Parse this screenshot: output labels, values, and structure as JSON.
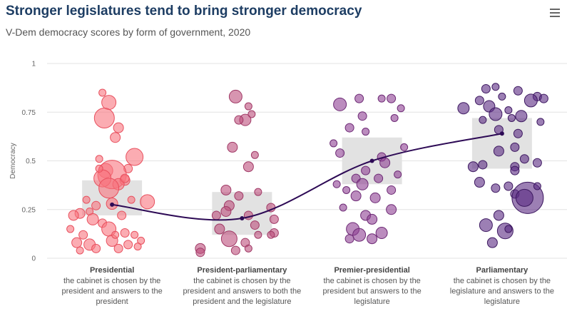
{
  "header": {
    "title": "Stronger legislatures tend to bring stronger democracy",
    "subtitle": "V-Dem democracy scores by form of government, 2020",
    "menu_icon": "hamburger-menu-icon"
  },
  "chart_data": {
    "type": "scatter",
    "title": "Stronger legislatures tend to bring stronger democracy",
    "subtitle": "V-Dem democracy scores by form of government, 2020",
    "ylabel": "Democracy",
    "ylim": [
      0,
      1
    ],
    "yticks": [
      0,
      0.25,
      0.5,
      0.75,
      1
    ],
    "yticklabels": [
      "0",
      "0.25",
      "0.5",
      "0.75",
      "1"
    ],
    "grid": true,
    "categories": [
      {
        "name": "Presidential",
        "description": [
          "the cabinet is chosen by the",
          "president and answers to the",
          "president"
        ],
        "color": "#f8747f",
        "stroke": "#e8505e",
        "iqr": [
          0.22,
          0.4
        ],
        "median": 0.275,
        "points": [
          [
            -0.15,
            0.85,
            5
          ],
          [
            -0.05,
            0.8,
            10
          ],
          [
            -0.12,
            0.72,
            14
          ],
          [
            0.1,
            0.67,
            7
          ],
          [
            0.05,
            0.62,
            7
          ],
          [
            0.35,
            0.52,
            12
          ],
          [
            -0.2,
            0.51,
            5
          ],
          [
            0.25,
            0.46,
            6
          ],
          [
            -0.1,
            0.45,
            10
          ],
          [
            0.0,
            0.43,
            20
          ],
          [
            -0.15,
            0.41,
            12
          ],
          [
            0.2,
            0.4,
            7
          ],
          [
            0.1,
            0.38,
            8
          ],
          [
            -0.05,
            0.36,
            14
          ],
          [
            0.3,
            0.3,
            5
          ],
          [
            -0.4,
            0.3,
            5
          ],
          [
            0.55,
            0.29,
            10
          ],
          [
            0.0,
            0.28,
            8
          ],
          [
            -0.25,
            0.27,
            6
          ],
          [
            -0.5,
            0.23,
            7
          ],
          [
            -0.35,
            0.24,
            5
          ],
          [
            0.15,
            0.22,
            6
          ],
          [
            -0.6,
            0.22,
            7
          ],
          [
            -0.3,
            0.2,
            8
          ],
          [
            -0.15,
            0.18,
            6
          ],
          [
            -0.05,
            0.15,
            10
          ],
          [
            -0.65,
            0.15,
            5
          ],
          [
            0.2,
            0.13,
            6
          ],
          [
            0.35,
            0.12,
            5
          ],
          [
            -0.45,
            0.12,
            6
          ],
          [
            0.0,
            0.09,
            8
          ],
          [
            0.45,
            0.09,
            5
          ],
          [
            -0.55,
            0.08,
            7
          ],
          [
            0.25,
            0.07,
            6
          ],
          [
            -0.35,
            0.07,
            8
          ],
          [
            -0.25,
            0.05,
            6
          ],
          [
            0.4,
            0.06,
            5
          ],
          [
            -0.5,
            0.04,
            5
          ],
          [
            0.1,
            0.05,
            6
          ],
          [
            0.05,
            0.12,
            5
          ],
          [
            0.2,
            0.41,
            6
          ],
          [
            -0.2,
            0.46,
            5
          ]
        ]
      },
      {
        "name": "President-parliamentary",
        "description": [
          "the cabinet is chosen by the",
          "president and answers to both the",
          "president and the legislature"
        ],
        "color": "#bd4e7c",
        "stroke": "#a03a66",
        "iqr": [
          0.12,
          0.34
        ],
        "median": 0.205,
        "points": [
          [
            -0.1,
            0.83,
            9
          ],
          [
            0.1,
            0.78,
            5
          ],
          [
            0.15,
            0.74,
            5
          ],
          [
            0.05,
            0.71,
            8
          ],
          [
            -0.05,
            0.71,
            6
          ],
          [
            -0.15,
            0.57,
            7
          ],
          [
            0.2,
            0.53,
            5
          ],
          [
            0.1,
            0.47,
            7
          ],
          [
            -0.25,
            0.35,
            7
          ],
          [
            0.25,
            0.34,
            5
          ],
          [
            -0.05,
            0.32,
            6
          ],
          [
            -0.2,
            0.27,
            7
          ],
          [
            -0.25,
            0.24,
            7
          ],
          [
            0.45,
            0.26,
            6
          ],
          [
            0.5,
            0.2,
            6
          ],
          [
            -0.4,
            0.22,
            6
          ],
          [
            0.1,
            0.22,
            6
          ],
          [
            -0.35,
            0.15,
            7
          ],
          [
            0.2,
            0.17,
            6
          ],
          [
            0.5,
            0.13,
            6
          ],
          [
            0.45,
            0.12,
            5
          ],
          [
            -0.2,
            0.1,
            11
          ],
          [
            0.05,
            0.08,
            6
          ],
          [
            -0.65,
            0.05,
            7
          ],
          [
            0.1,
            0.05,
            5
          ],
          [
            -0.65,
            0.03,
            6
          ],
          [
            -0.1,
            0.04,
            6
          ],
          [
            0.25,
            0.12,
            5
          ]
        ]
      },
      {
        "name": "Premier-presidential",
        "description": [
          "the cabinet is chosen by the",
          "president but answers to the",
          "legislature"
        ],
        "color": "#8e3f92",
        "stroke": "#6d2a75",
        "iqr": [
          0.38,
          0.62
        ],
        "median": 0.5,
        "points": [
          [
            -0.5,
            0.79,
            9
          ],
          [
            -0.2,
            0.82,
            6
          ],
          [
            0.15,
            0.82,
            5
          ],
          [
            0.3,
            0.82,
            6
          ],
          [
            0.45,
            0.77,
            5
          ],
          [
            0.35,
            0.72,
            5
          ],
          [
            -0.15,
            0.73,
            6
          ],
          [
            -0.35,
            0.67,
            6
          ],
          [
            -0.1,
            0.65,
            5
          ],
          [
            -0.6,
            0.59,
            5
          ],
          [
            -0.5,
            0.54,
            6
          ],
          [
            0.5,
            0.57,
            5
          ],
          [
            0.15,
            0.52,
            6
          ],
          [
            0.2,
            0.49,
            7
          ],
          [
            -0.1,
            0.45,
            6
          ],
          [
            0.4,
            0.43,
            5
          ],
          [
            -0.25,
            0.41,
            6
          ],
          [
            0.1,
            0.41,
            6
          ],
          [
            -0.15,
            0.38,
            8
          ],
          [
            -0.55,
            0.38,
            5
          ],
          [
            0.3,
            0.35,
            6
          ],
          [
            -0.4,
            0.35,
            5
          ],
          [
            -0.25,
            0.32,
            7
          ],
          [
            0.05,
            0.31,
            7
          ],
          [
            -0.45,
            0.26,
            5
          ],
          [
            0.3,
            0.25,
            7
          ],
          [
            -0.1,
            0.22,
            7
          ],
          [
            -0.3,
            0.15,
            9
          ],
          [
            0.15,
            0.13,
            8
          ],
          [
            -0.2,
            0.12,
            9
          ],
          [
            0.0,
            0.1,
            7
          ],
          [
            -0.35,
            0.1,
            6
          ],
          [
            0.0,
            0.2,
            7
          ]
        ]
      },
      {
        "name": "Parliamentary",
        "description": [
          "the cabinet is chosen by the",
          "legislature and answers to the",
          "legislature"
        ],
        "color": "#5a2a82",
        "stroke": "#3e1a61",
        "iqr": [
          0.46,
          0.72
        ],
        "median": 0.64,
        "points": [
          [
            -0.25,
            0.87,
            6
          ],
          [
            -0.1,
            0.88,
            5
          ],
          [
            0.25,
            0.86,
            6
          ],
          [
            0.55,
            0.83,
            6
          ],
          [
            0.65,
            0.82,
            6
          ],
          [
            0.45,
            0.81,
            9
          ],
          [
            -0.35,
            0.81,
            6
          ],
          [
            0.0,
            0.83,
            5
          ],
          [
            -0.6,
            0.77,
            8
          ],
          [
            -0.2,
            0.78,
            8
          ],
          [
            0.1,
            0.76,
            5
          ],
          [
            -0.1,
            0.74,
            9
          ],
          [
            0.3,
            0.73,
            8
          ],
          [
            0.15,
            0.72,
            5
          ],
          [
            -0.3,
            0.71,
            5
          ],
          [
            0.6,
            0.7,
            5
          ],
          [
            -0.05,
            0.66,
            6
          ],
          [
            0.25,
            0.64,
            6
          ],
          [
            0.2,
            0.57,
            6
          ],
          [
            -0.05,
            0.55,
            7
          ],
          [
            0.35,
            0.51,
            6
          ],
          [
            -0.3,
            0.48,
            6
          ],
          [
            -0.45,
            0.47,
            7
          ],
          [
            0.2,
            0.47,
            6
          ],
          [
            0.55,
            0.49,
            6
          ],
          [
            0.2,
            0.45,
            6
          ],
          [
            -0.35,
            0.39,
            7
          ],
          [
            0.1,
            0.37,
            6
          ],
          [
            -0.1,
            0.36,
            6
          ],
          [
            0.2,
            0.33,
            6
          ],
          [
            0.4,
            0.31,
            22
          ],
          [
            0.35,
            0.31,
            12
          ],
          [
            -0.05,
            0.22,
            7
          ],
          [
            -0.25,
            0.17,
            9
          ],
          [
            0.05,
            0.14,
            11
          ],
          [
            -0.15,
            0.08,
            7
          ],
          [
            0.1,
            0.15,
            5
          ],
          [
            0.55,
            0.37,
            5
          ]
        ]
      }
    ]
  }
}
